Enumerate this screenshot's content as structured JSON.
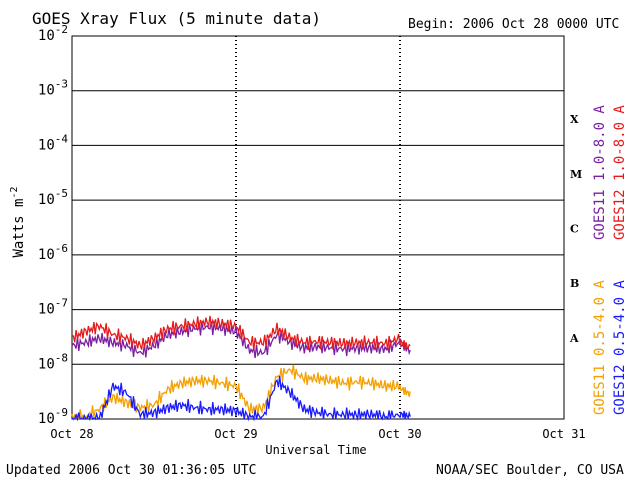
{
  "header": {
    "title": "GOES Xray Flux (5 minute data)",
    "begin": "Begin:  2006 Oct 28 0000 UTC"
  },
  "footer": {
    "updated": "Updated 2006 Oct 30 01:36:05 UTC",
    "credit": "NOAA/SEC Boulder, CO USA"
  },
  "chart_data": {
    "type": "line",
    "title": "GOES Xray Flux (5 minute data)",
    "xlabel": "Universal Time",
    "ylabel": "Watts m-2",
    "yscale": "log",
    "ylim": [
      1e-09,
      0.01
    ],
    "xlim": [
      "2006-10-28 00:00",
      "2006-10-31 00:00"
    ],
    "x_ticks": [
      "Oct 28",
      "Oct 29",
      "Oct 30",
      "Oct 31"
    ],
    "y_ticks": [
      {
        "base": "10",
        "exp": "-2"
      },
      {
        "base": "10",
        "exp": "-3"
      },
      {
        "base": "10",
        "exp": "-4"
      },
      {
        "base": "10",
        "exp": "-5"
      },
      {
        "base": "10",
        "exp": "-6"
      },
      {
        "base": "10",
        "exp": "-7"
      },
      {
        "base": "10",
        "exp": "-8"
      },
      {
        "base": "10",
        "exp": "-9"
      }
    ],
    "flare_classes": [
      "X",
      "M",
      "C",
      "B",
      "A"
    ],
    "grid": true,
    "legend_position": "right",
    "series": [
      {
        "name": "GOES11 1.0-8.0 A",
        "color": "#7b1fa2",
        "times_hr": [
          0,
          2,
          4,
          6,
          8,
          10,
          12,
          14,
          16,
          18,
          20,
          22,
          24,
          26,
          28,
          30,
          32,
          34,
          36,
          38,
          40,
          42,
          44,
          46,
          48,
          49.5
        ],
        "values": [
          2.2e-08,
          2.5e-08,
          3e-08,
          2.5e-08,
          2.2e-08,
          1.6e-08,
          2.2e-08,
          3.5e-08,
          4e-08,
          4.5e-08,
          4.8e-08,
          4.5e-08,
          4e-08,
          1.8e-08,
          1.6e-08,
          3.5e-08,
          2.5e-08,
          2e-08,
          2.1e-08,
          2e-08,
          1.9e-08,
          2e-08,
          2e-08,
          1.9e-08,
          2.5e-08,
          1.8e-08
        ]
      },
      {
        "name": "GOES12 1.0-8.0 A",
        "color": "#e41a1c",
        "times_hr": [
          0,
          2,
          4,
          6,
          8,
          10,
          12,
          14,
          16,
          18,
          20,
          22,
          24,
          26,
          28,
          30,
          32,
          34,
          36,
          38,
          40,
          42,
          44,
          46,
          48,
          49.5
        ],
        "values": [
          3e-08,
          4e-08,
          5e-08,
          3.5e-08,
          3e-08,
          2.2e-08,
          3e-08,
          4.5e-08,
          5e-08,
          5.5e-08,
          6e-08,
          5.5e-08,
          5e-08,
          2.5e-08,
          2.5e-08,
          4.5e-08,
          3e-08,
          2.5e-08,
          2.6e-08,
          2.5e-08,
          2.4e-08,
          2.5e-08,
          2.5e-08,
          2.4e-08,
          3e-08,
          2.2e-08
        ]
      },
      {
        "name": "GOES11 0.5-4.0 A",
        "color": "#f5a000",
        "times_hr": [
          0,
          2,
          4,
          6,
          8,
          10,
          12,
          14,
          16,
          18,
          20,
          22,
          24,
          26,
          28,
          30,
          32,
          34,
          36,
          38,
          40,
          42,
          44,
          46,
          48,
          49.5
        ],
        "values": [
          1.1e-09,
          1.1e-09,
          1.5e-09,
          2.5e-09,
          2e-09,
          1.6e-09,
          1.8e-09,
          3.5e-09,
          4.5e-09,
          5e-09,
          5e-09,
          4.5e-09,
          4e-09,
          1.5e-09,
          1.6e-09,
          6e-09,
          8e-09,
          5.5e-09,
          5.5e-09,
          5e-09,
          4.5e-09,
          4.8e-09,
          4.5e-09,
          4e-09,
          4e-09,
          3.2e-09
        ]
      },
      {
        "name": "GOES12 0.5-4.0 A",
        "color": "#1a1aff",
        "times_hr": [
          0,
          2,
          4,
          6,
          8,
          10,
          12,
          14,
          16,
          18,
          20,
          22,
          24,
          26,
          28,
          30,
          32,
          34,
          36,
          38,
          40,
          42,
          44,
          46,
          48,
          49.5
        ],
        "values": [
          1e-09,
          1e-09,
          1e-09,
          4e-09,
          3e-09,
          1.2e-09,
          1.3e-09,
          1.6e-09,
          1.8e-09,
          1.6e-09,
          1.5e-09,
          1.5e-09,
          1.4e-09,
          1.1e-09,
          1.1e-09,
          5e-09,
          3e-09,
          1.5e-09,
          1.3e-09,
          1.2e-09,
          1.2e-09,
          1.2e-09,
          1.2e-09,
          1.1e-09,
          1.2e-09,
          1.1e-09
        ]
      }
    ]
  }
}
